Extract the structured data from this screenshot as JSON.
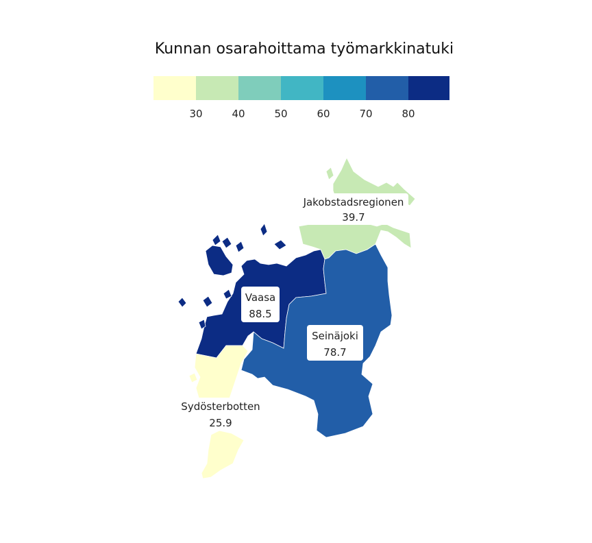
{
  "title": "Kunnan osarahoittama työmarkkinatuki",
  "legend": {
    "colors": [
      "#ffffcc",
      "#c7e9b4",
      "#7fcdbb",
      "#41b6c4",
      "#1d91c0",
      "#225ea8",
      "#0c2c84"
    ],
    "ticks": [
      "30",
      "40",
      "50",
      "60",
      "70",
      "80"
    ]
  },
  "regions": [
    {
      "name": "Jakobstadsregionen",
      "value": "39.7",
      "color": "#c7e9b4"
    },
    {
      "name": "Vaasa",
      "value": "88.5",
      "color": "#0c2c84"
    },
    {
      "name": "Seinäjoki",
      "value": "78.7",
      "color": "#225ea8"
    },
    {
      "name": "Sydösterbotten",
      "value": "25.9",
      "color": "#ffffcc"
    }
  ]
}
